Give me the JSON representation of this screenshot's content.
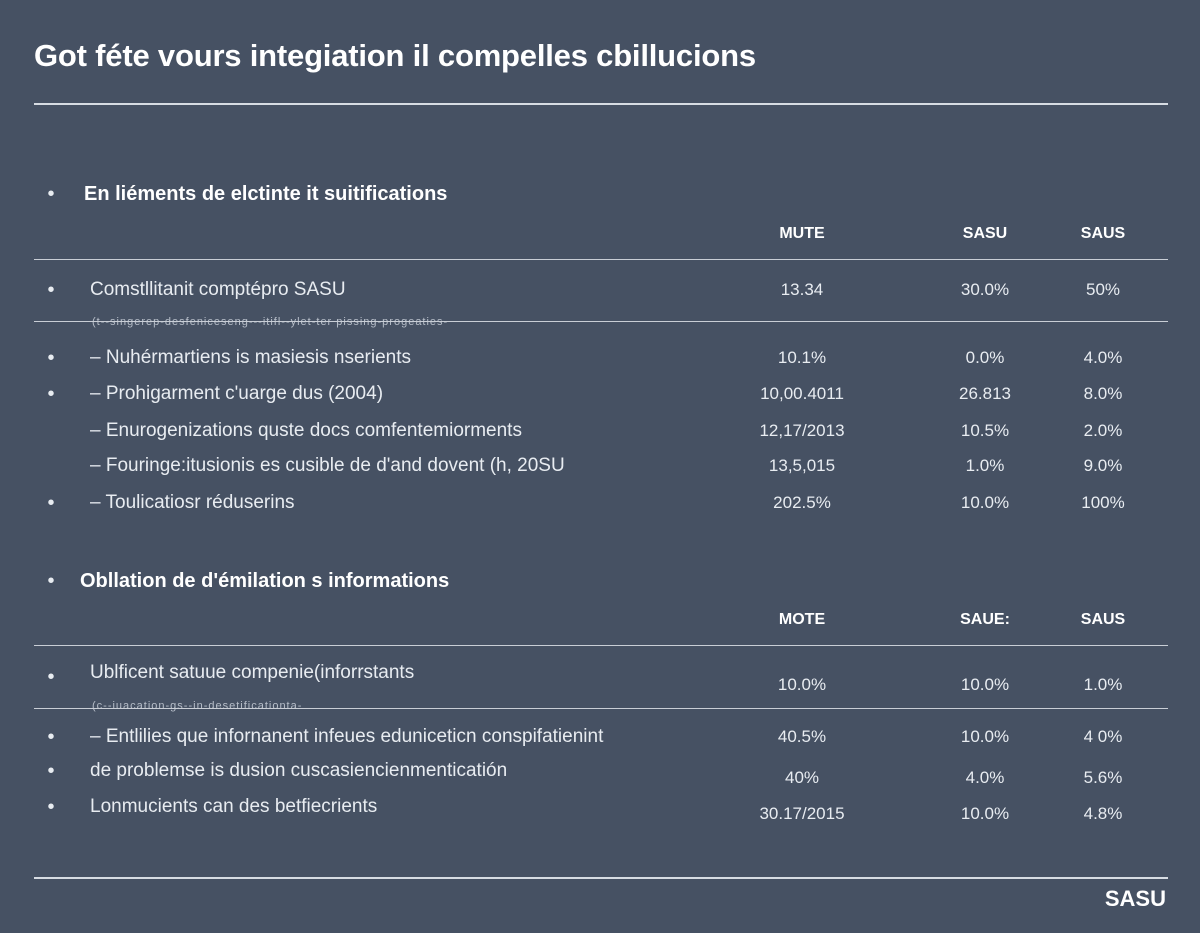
{
  "title": "Got féte vours integiation il compelles cbillucions",
  "brand": "SASU",
  "section1": {
    "title": "En liéments de elctinte it suitifications",
    "headers": [
      "MUTE",
      "SASU",
      "SAUS"
    ],
    "footnote": "(t--singerep-desfeniceseng---itifl--ylet-ter pissing-progeaties-",
    "rows": [
      {
        "bullet": true,
        "label": "Comstllitanit comptépro SASU",
        "values": [
          "13.34",
          "30.0%",
          "50%"
        ]
      },
      {
        "bullet": true,
        "label": "– Nuhérmartiens is masiesis nserients",
        "values": [
          "10.1%",
          "0.0%",
          "4.0%"
        ]
      },
      {
        "bullet": true,
        "label": "– Prohigarment c'uarge dus (2004)",
        "values": [
          "10,00.4011",
          "26.813",
          "8.0%"
        ]
      },
      {
        "bullet": false,
        "label": "– Enurogenizations quste docs comfentemiorments",
        "values": [
          "12,17/2013",
          "10.5%",
          "2.0%"
        ]
      },
      {
        "bullet": false,
        "label": "– Fouringe:itusionis es cusible de d'and dovent (h, 20SU",
        "values": [
          "13,5,015",
          "1.0%",
          "9.0%"
        ]
      },
      {
        "bullet": true,
        "label": "– Toulicatiosr réduserins",
        "values": [
          "202.5%",
          "10.0%",
          "100%"
        ]
      }
    ]
  },
  "section2": {
    "title": "Obllation de d'émilation s informations",
    "headers": [
      "MOTE",
      "SAUE:",
      "SAUS"
    ],
    "footnote": "(c--iuacation-gs--in-desetificationta-",
    "rows": [
      {
        "bullet": true,
        "label": "Ublficent satuue compenie(inforrstants",
        "values": [
          "10.0%",
          "10.0%",
          "1.0%"
        ]
      },
      {
        "bullet": true,
        "label": "– Entlilies que infornanent infeues eduniceticn conspifatienint",
        "values": [
          "40.5%",
          "10.0%",
          "4 0%"
        ]
      },
      {
        "bullet": true,
        "label": "de problemse is dusion cuscasiencienmenticatión",
        "values": [
          "40%",
          "4.0%",
          "5.6%"
        ]
      },
      {
        "bullet": true,
        "label": "Lonmucients can des betfiecrients",
        "values": [
          "30.17/2015",
          "10.0%",
          "4.8%"
        ]
      }
    ]
  }
}
